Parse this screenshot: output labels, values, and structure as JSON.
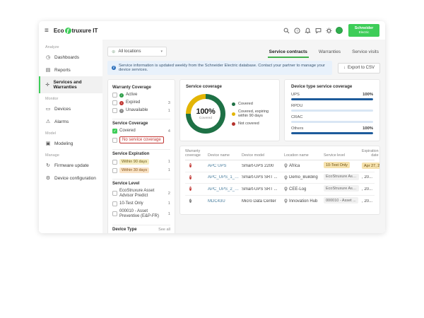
{
  "topbar": {
    "brand_prefix": "Eco",
    "brand_mark": "f",
    "brand_suffix": "truxure IT",
    "logo_line1": "Schneider",
    "logo_line2": "Electric"
  },
  "sidebar": {
    "sections": [
      {
        "label": "Analyze",
        "items": [
          {
            "label": "Dashboards",
            "glyph": "◷"
          },
          {
            "label": "Reports",
            "glyph": "▤"
          },
          {
            "label": "Services and Warranties",
            "glyph": "✛"
          }
        ]
      },
      {
        "label": "Monitor",
        "items": [
          {
            "label": "Devices",
            "glyph": "▭"
          },
          {
            "label": "Alarms",
            "glyph": "⚠"
          }
        ]
      },
      {
        "label": "Model",
        "items": [
          {
            "label": "Modeling",
            "glyph": "▣"
          }
        ]
      },
      {
        "label": "Manage",
        "items": [
          {
            "label": "Firmware update",
            "glyph": "↻"
          },
          {
            "label": "Device configuration",
            "glyph": "⚙"
          }
        ]
      }
    ]
  },
  "toolbar": {
    "location": "All locations",
    "chevron": "▾",
    "globe": "⊕",
    "banner": "Service information is updated weekly from the Schneider Electric database. Contact your partner to manage your device services.",
    "info_glyph": "i",
    "export_label": "Export to CSV",
    "download_glyph": "↓"
  },
  "tabs": [
    {
      "label": "Service contracts"
    },
    {
      "label": "Warranties"
    },
    {
      "label": "Service visits"
    }
  ],
  "filters": {
    "warranty_coverage": {
      "title": "Warranty Coverage",
      "items": [
        {
          "label": "Active",
          "count": "",
          "dot_glyph": "✓"
        },
        {
          "label": "Expired",
          "count": "3",
          "dot_glyph": "×"
        },
        {
          "label": "Unavailable",
          "count": "1",
          "dot_glyph": "?"
        }
      ]
    },
    "service_coverage": {
      "title": "Service Coverage",
      "items": [
        {
          "label": "Covered",
          "count": "4",
          "check_glyph": "✓"
        },
        {
          "label": "No service coverage",
          "count": ""
        }
      ]
    },
    "service_expiration": {
      "title": "Service Expiration",
      "items": [
        {
          "label": "Within 90 days",
          "count": "1"
        },
        {
          "label": "Within 30 days",
          "count": "1"
        }
      ]
    },
    "service_level": {
      "title": "Service Level",
      "items": [
        {
          "label": "EcoStruxure Asset Advisor Predict",
          "count": "2"
        },
        {
          "label": "10-Test Only",
          "count": "1"
        },
        {
          "label": "000010 - Asset Preventive (E&P-FR)",
          "count": "1"
        }
      ]
    },
    "device_type": {
      "title": "Device Type",
      "see_all": "See all"
    }
  },
  "chart_data": [
    {
      "type": "pie",
      "title": "Service coverage",
      "center_value": "100%",
      "center_label": "Covered",
      "labels": [
        "Covered",
        "Covered, expiring within 90 days",
        "Not covered"
      ],
      "values": [
        75,
        25,
        0
      ],
      "colors": [
        "#1e7145",
        "#e3b505",
        "#b5332d"
      ],
      "legend_position": "right",
      "note": "Donut: 3 of 4 covered (green), 1 of 4 covered but expiring within 90 days (yellow), 0 not covered; center reads 100% Covered"
    },
    {
      "type": "bar",
      "title": "Device type service coverage",
      "orientation": "horizontal",
      "categories": [
        "UPS",
        "RPDU",
        "CRAC",
        "Others"
      ],
      "values": [
        100,
        null,
        null,
        100
      ],
      "value_labels": [
        "100%",
        "",
        "",
        "100%"
      ],
      "color": "#1d5b9b",
      "track_color": "#d9e6f4",
      "xlim": [
        0,
        100
      ]
    }
  ],
  "table": {
    "headers": [
      "Warranty coverage",
      "Device name",
      "Device model",
      "Location name",
      "Service level",
      "Expiration date"
    ],
    "header_icons": {
      "settings": "⚙",
      "sort_up": "↑"
    },
    "rows": [
      {
        "warranty": "expired",
        "warranty_glyph": "×",
        "name": "APC UPS",
        "model": "Smart-UPS 2200",
        "location": "Africa",
        "service_level": "10-Test Only",
        "expiration": "Apr 27, 2024"
      },
      {
        "warranty": "expired",
        "warranty_glyph": "×",
        "name": "APC_UPS_1_D...",
        "model": "Smart-UPS SRT ...",
        "location": "Demo_Building",
        "service_level": "EcoStruxure Ass...",
        "expiration": "Dec 31, 20..."
      },
      {
        "warranty": "expired",
        "warranty_glyph": "×",
        "name": "APC_UPS_2_Up",
        "model": "Smart-UPS SRT ...",
        "location": "CEE-Log",
        "service_level": "EcoStruxure Ass...",
        "expiration": "Dec 31, 20..."
      },
      {
        "warranty": "unavailable",
        "warranty_glyph": "?",
        "name": "MDC43U",
        "model": "Micro Data Center",
        "location": "Innovation Hub",
        "service_level": "000010 - Asset ...",
        "expiration": "Dec 31, 20..."
      }
    ]
  }
}
